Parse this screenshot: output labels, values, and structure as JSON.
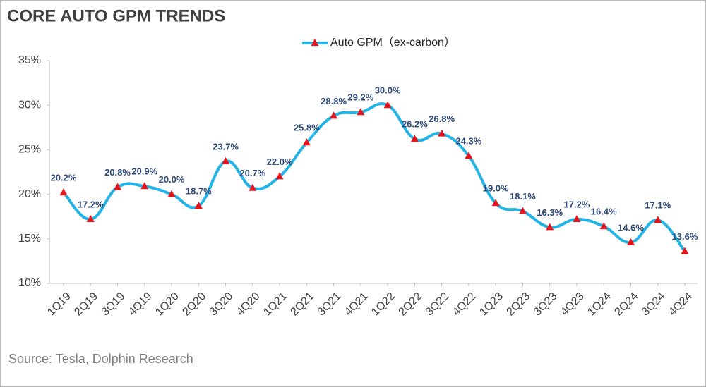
{
  "chart_data": {
    "type": "line",
    "title": "CORE AUTO GPM TRENDS",
    "source": "Source: Tesla, Dolphin Research",
    "categories": [
      "1Q19",
      "2Q19",
      "3Q19",
      "4Q19",
      "1Q20",
      "2Q20",
      "3Q20",
      "4Q20",
      "1Q21",
      "2Q21",
      "3Q21",
      "4Q21",
      "1Q22",
      "2Q22",
      "3Q22",
      "4Q22",
      "1Q23",
      "2Q23",
      "3Q23",
      "4Q23",
      "1Q24",
      "2Q24",
      "3Q24",
      "4Q24"
    ],
    "series": [
      {
        "name": "Auto GPM（ex-carbon）",
        "color": "#22b4e6",
        "marker_color": "#e8141b",
        "values": [
          20.2,
          17.2,
          20.8,
          20.9,
          20.0,
          18.7,
          23.7,
          20.7,
          22.0,
          25.8,
          28.8,
          29.2,
          30.0,
          26.2,
          26.8,
          24.3,
          19.0,
          18.1,
          16.3,
          17.2,
          16.4,
          14.6,
          17.1,
          13.6
        ],
        "value_labels": [
          "20.2%",
          "17.2%",
          "20.8%",
          "20.9%",
          "20.0%",
          "18.7%",
          "23.7%",
          "20.7%",
          "22.0%",
          "25.8%",
          "28.8%",
          "29.2%",
          "30.0%",
          "26.2%",
          "26.8%",
          "24.3%",
          "19.0%",
          "18.1%",
          "16.3%",
          "17.2%",
          "16.4%",
          "14.6%",
          "17.1%",
          "13.6%"
        ]
      }
    ],
    "ylim": [
      10,
      35
    ],
    "yticks": [
      {
        "value": 10,
        "label": "10%"
      },
      {
        "value": 15,
        "label": "15%"
      },
      {
        "value": 20,
        "label": "20%"
      },
      {
        "value": 25,
        "label": "25%"
      },
      {
        "value": 30,
        "label": "30%"
      },
      {
        "value": 35,
        "label": "35%"
      }
    ],
    "grid": false,
    "legend": "top"
  }
}
